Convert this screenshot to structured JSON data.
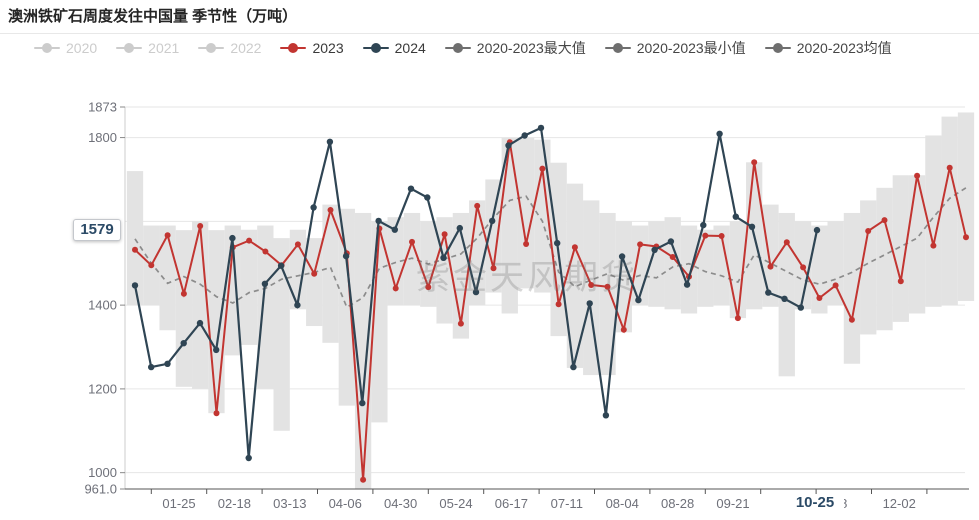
{
  "header": {
    "title": "澳洲铁矿石周度发往中国量 季节性（万吨）"
  },
  "legend": {
    "items": [
      {
        "label": "2020",
        "color": "#cccccc",
        "text_color": "#cccccc",
        "active": false
      },
      {
        "label": "2021",
        "color": "#cccccc",
        "text_color": "#cccccc",
        "active": false
      },
      {
        "label": "2022",
        "color": "#cccccc",
        "text_color": "#cccccc",
        "active": false
      },
      {
        "label": "2023",
        "color": "#c23531",
        "text_color": "#3a3a3a",
        "active": true
      },
      {
        "label": "2024",
        "color": "#2f4554",
        "text_color": "#3a3a3a",
        "active": true
      },
      {
        "label": "2020-2023最大值",
        "color": "#6f6f6f",
        "text_color": "#464646",
        "active": true
      },
      {
        "label": "2020-2023最小值",
        "color": "#6f6f6f",
        "text_color": "#464646",
        "active": true
      },
      {
        "label": "2020-2023均值",
        "color": "#6f6f6f",
        "text_color": "#464646",
        "active": true
      }
    ]
  },
  "watermark": {
    "text": "紫金天风期货"
  },
  "y_axis": {
    "pointer_label": "1579",
    "labels": [
      {
        "text": "1873",
        "value": 1873
      },
      {
        "text": "1800",
        "value": 1800
      },
      {
        "text": "1400",
        "value": 1400
      },
      {
        "text": "1200",
        "value": 1200
      },
      {
        "text": "1000",
        "value": 1000
      },
      {
        "text": "961.0",
        "value": 961
      }
    ]
  },
  "x_axis": {
    "pointer_label": "10-25",
    "labels": [
      "01-25",
      "02-18",
      "03-13",
      "04-06",
      "04-30",
      "05-24",
      "06-17",
      "07-11",
      "08-04",
      "08-28",
      "09-21",
      "",
      "8",
      "12-02"
    ]
  },
  "chart_data": {
    "type": "line",
    "title": "澳洲铁矿石周度发往中国量 季节性（万吨）",
    "ylabel": "万吨",
    "ylim": [
      961,
      1873
    ],
    "grid_values": [
      1000,
      1200,
      1400,
      1600,
      1800,
      1873
    ],
    "legend_position": "top",
    "band_color": "#e3e3e3",
    "series": [
      {
        "name": "2023",
        "type": "line",
        "style": "solid",
        "color": "#c23531",
        "values": [
          1532,
          1495,
          1567,
          1427,
          1589,
          1142,
          1538,
          1554,
          1528,
          1495,
          1545,
          1475,
          1627,
          1524,
          983,
          1583,
          1440,
          1551,
          1443,
          1569,
          1356,
          1637,
          1488,
          1789,
          1546,
          1726,
          1402,
          1538,
          1448,
          1444,
          1341,
          1545,
          1540,
          1515,
          1468,
          1566,
          1565,
          1369,
          1741,
          1492,
          1550,
          1490,
          1417,
          1447,
          1365,
          1577,
          1603,
          1457,
          1709,
          1542,
          1728,
          1562
        ]
      },
      {
        "name": "2024",
        "type": "line",
        "style": "solid",
        "color": "#2f4554",
        "values": [
          1447,
          1252,
          1260,
          1309,
          1357,
          1293,
          1560,
          1035,
          1451,
          1494,
          1400,
          1633,
          1790,
          1517,
          1166,
          1601,
          1580,
          1678,
          1657,
          1513,
          1584,
          1431,
          1601,
          1781,
          1805,
          1823,
          1548,
          1252,
          1404,
          1137,
          1516,
          1412,
          1532,
          1552,
          1449,
          1591,
          1809,
          1611,
          1587,
          1430,
          1415,
          1394,
          1579
        ]
      },
      {
        "name": "2020-2023均值",
        "type": "line",
        "style": "dashed",
        "color": "#8c8c8c",
        "values": [
          1558,
          1500,
          1452,
          1468,
          1450,
          1420,
          1405,
          1430,
          1440,
          1462,
          1470,
          1478,
          1490,
          1395,
          1418,
          1488,
          1502,
          1512,
          1498,
          1510,
          1522,
          1560,
          1608,
          1650,
          1660,
          1600,
          1479,
          1444,
          1460,
          1475,
          1459,
          1471,
          1465,
          1491,
          1499,
          1480,
          1470,
          1455,
          1520,
          1500,
          1480,
          1460,
          1450,
          1462,
          1478,
          1500,
          1520,
          1540,
          1560,
          1610,
          1655,
          1680
        ]
      },
      {
        "name": "2020-2023最大值",
        "type": "band-upper",
        "style": "step-area",
        "color": "#e3e3e3",
        "values": [
          1720,
          1590,
          1590,
          1579,
          1600,
          1579,
          1590,
          1580,
          1590,
          1560,
          1580,
          1560,
          1640,
          1630,
          1620,
          1600,
          1610,
          1620,
          1600,
          1610,
          1620,
          1650,
          1700,
          1800,
          1800,
          1795,
          1740,
          1690,
          1650,
          1620,
          1600,
          1590,
          1600,
          1610,
          1590,
          1580,
          1590,
          1600,
          1741,
          1640,
          1620,
          1600,
          1590,
          1600,
          1620,
          1650,
          1680,
          1710,
          1710,
          1805,
          1850,
          1860
        ]
      },
      {
        "name": "2020-2023最小值",
        "type": "band-lower",
        "style": "step-area",
        "color": "#e3e3e3",
        "values": [
          1400,
          1400,
          1340,
          1205,
          1200,
          1142,
          1280,
          1305,
          1200,
          1100,
          1390,
          1350,
          1310,
          1160,
          961,
          1120,
          1400,
          1400,
          1396,
          1356,
          1320,
          1400,
          1430,
          1380,
          1440,
          1430,
          1326,
          1250,
          1233,
          1233,
          1335,
          1400,
          1396,
          1390,
          1380,
          1396,
          1400,
          1369,
          1390,
          1396,
          1230,
          1390,
          1380,
          1400,
          1260,
          1330,
          1340,
          1360,
          1380,
          1396,
          1400,
          1410
        ]
      }
    ],
    "inactive_series": [
      "2020",
      "2021",
      "2022"
    ],
    "pointer": {
      "y_value": 1579,
      "x_label": "10-25"
    }
  }
}
